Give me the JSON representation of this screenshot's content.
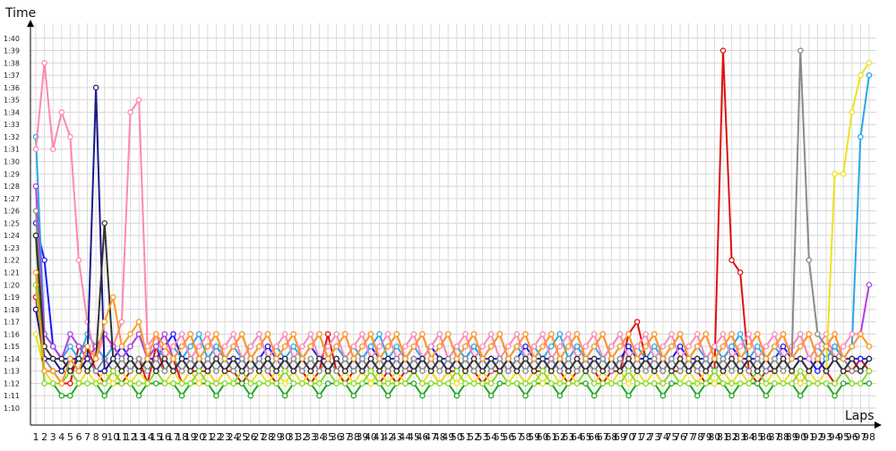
{
  "chart_data": {
    "type": "line",
    "title": "",
    "xlabel": "Laps",
    "ylabel": "Time",
    "ylim": [
      70,
      101
    ],
    "xlim": [
      1,
      98
    ],
    "grid": true,
    "y_ticks": [
      "1:10",
      "1:11",
      "1:12",
      "1:13",
      "1:14",
      "1:15",
      "1:16",
      "1:17",
      "1:18",
      "1:19",
      "1:20",
      "1:21",
      "1:22",
      "1:23",
      "1:24",
      "1:25",
      "1:26",
      "1:27",
      "1:28",
      "1:29",
      "1:30",
      "1:31",
      "1:32",
      "1:33",
      "1:34",
      "1:35",
      "1:36",
      "1:37",
      "1:38",
      "1:39",
      "1:40"
    ],
    "series_colors": [
      "#e01010",
      "#1a1aff",
      "#22a822",
      "#2aa8e8",
      "#ff88b0",
      "#b040e0",
      "#f0e020",
      "#8a8a8a",
      "#8ada30",
      "#1a1a8c",
      "#333333",
      "#ff9a20",
      "#30c0c0",
      "#a0c040",
      "#d01870",
      "#0090ff",
      "#70e070",
      "#e8a0ff",
      "#c0a000",
      "#606060"
    ],
    "series": [
      {
        "values": [
          79,
          73,
          73,
          72,
          72,
          75,
          75,
          73,
          72,
          73,
          72,
          73,
          74,
          72,
          75,
          73,
          74,
          72,
          73,
          73,
          73,
          72,
          73,
          73,
          72,
          73,
          74,
          73,
          72,
          73,
          74,
          73,
          72,
          73,
          76,
          73,
          72,
          73,
          74,
          73,
          72,
          73,
          72,
          73,
          73,
          74,
          73,
          72,
          73,
          73,
          74,
          73,
          72,
          73,
          73,
          74,
          73,
          72,
          73,
          73,
          74,
          73,
          72,
          73,
          74,
          73,
          72,
          73,
          73,
          76,
          77,
          74,
          73,
          72,
          73,
          73,
          74,
          73,
          72,
          73,
          99,
          82,
          81,
          73,
          72,
          73,
          73,
          74,
          73,
          72,
          73,
          74,
          73,
          72,
          73,
          73,
          74,
          73
        ]
      },
      {
        "values": [
          85,
          82,
          75,
          74,
          74,
          74,
          74,
          73,
          73,
          74,
          75,
          74,
          73,
          74,
          74,
          75,
          76,
          74,
          74,
          73,
          74,
          75,
          74,
          74,
          74,
          73,
          74,
          75,
          74,
          74,
          73,
          74,
          75,
          74,
          74,
          75,
          74,
          73,
          74,
          75,
          74,
          74,
          74,
          73,
          74,
          74,
          75,
          74,
          74,
          73,
          74,
          75,
          74,
          74,
          74,
          73,
          74,
          75,
          74,
          74,
          74,
          73,
          74,
          75,
          74,
          74,
          74,
          73,
          74,
          75,
          74,
          74,
          74,
          73,
          74,
          75,
          74,
          74,
          74,
          73,
          74,
          75,
          74,
          74,
          74,
          73,
          74,
          75,
          74,
          74,
          74,
          73,
          74,
          75,
          74,
          74,
          74,
          74
        ]
      },
      {
        "values": [
          84,
          72,
          72,
          71,
          71,
          72,
          72,
          72,
          71,
          72,
          72,
          72,
          71,
          72,
          72,
          72,
          72,
          71,
          72,
          72,
          72,
          71,
          72,
          72,
          72,
          71,
          72,
          72,
          72,
          71,
          72,
          72,
          72,
          71,
          72,
          72,
          72,
          71,
          72,
          72,
          72,
          71,
          72,
          72,
          72,
          71,
          72,
          72,
          72,
          71,
          72,
          72,
          72,
          71,
          72,
          72,
          72,
          71,
          72,
          72,
          72,
          71,
          72,
          72,
          72,
          71,
          72,
          72,
          72,
          71,
          72,
          72,
          72,
          71,
          72,
          72,
          72,
          71,
          72,
          72,
          72,
          71,
          72,
          72,
          72,
          71,
          72,
          72,
          72,
          71,
          72,
          72,
          72,
          71,
          72,
          72,
          72,
          72
        ]
      },
      {
        "values": [
          92,
          76,
          75,
          74,
          75,
          74,
          76,
          75,
          74,
          75,
          74,
          75,
          76,
          74,
          75,
          74,
          75,
          74,
          75,
          76,
          74,
          75,
          74,
          75,
          74,
          75,
          76,
          74,
          75,
          74,
          75,
          74,
          75,
          76,
          74,
          75,
          74,
          75,
          74,
          75,
          76,
          74,
          75,
          74,
          75,
          74,
          75,
          76,
          74,
          75,
          74,
          75,
          74,
          75,
          76,
          74,
          75,
          74,
          75,
          74,
          75,
          76,
          74,
          75,
          74,
          75,
          74,
          75,
          76,
          74,
          75,
          74,
          75,
          74,
          75,
          76,
          74,
          75,
          74,
          75,
          74,
          75,
          76,
          74,
          75,
          74,
          75,
          74,
          75,
          76,
          74,
          75,
          74,
          75,
          74,
          75,
          92,
          97
        ]
      },
      {
        "values": [
          91,
          98,
          91,
          94,
          92,
          82,
          77,
          74,
          76,
          75,
          77,
          94,
          95,
          75,
          76,
          74,
          75,
          76,
          74,
          75,
          76,
          74,
          75,
          76,
          74,
          75,
          76,
          74,
          75,
          76,
          74,
          75,
          76,
          74,
          75,
          76,
          74,
          75,
          76,
          74,
          75,
          76,
          74,
          75,
          76,
          74,
          75,
          76,
          74,
          75,
          76,
          74,
          75,
          76,
          74,
          75,
          76,
          74,
          75,
          76,
          74,
          75,
          76,
          74,
          75,
          76,
          74,
          75,
          76,
          74,
          75,
          76,
          74,
          75,
          76,
          74,
          75,
          76,
          74,
          75,
          76,
          74,
          75,
          76,
          74,
          75,
          76,
          74,
          75,
          76,
          74,
          75,
          76,
          74,
          75,
          76,
          76,
          75
        ]
      },
      {
        "values": [
          88,
          76,
          75,
          74,
          76,
          75,
          74,
          75,
          76,
          75,
          74,
          75,
          76,
          74,
          75,
          76,
          74,
          75,
          76,
          74,
          75,
          76,
          74,
          75,
          76,
          74,
          75,
          76,
          74,
          75,
          76,
          74,
          75,
          76,
          74,
          75,
          76,
          74,
          75,
          76,
          74,
          75,
          76,
          74,
          75,
          76,
          74,
          75,
          76,
          74,
          75,
          76,
          74,
          75,
          76,
          74,
          75,
          76,
          74,
          75,
          76,
          74,
          75,
          76,
          74,
          75,
          76,
          74,
          75,
          76,
          74,
          75,
          76,
          74,
          75,
          76,
          74,
          75,
          76,
          74,
          75,
          76,
          74,
          75,
          76,
          74,
          75,
          76,
          74,
          75,
          76,
          74,
          75,
          76,
          74,
          75,
          76,
          80
        ]
      },
      {
        "values": [
          76,
          73,
          72,
          72,
          73,
          72,
          73,
          72,
          73,
          72,
          73,
          72,
          73,
          72,
          73,
          72,
          73,
          72,
          73,
          72,
          73,
          72,
          73,
          72,
          73,
          72,
          73,
          72,
          73,
          72,
          73,
          72,
          73,
          72,
          73,
          72,
          73,
          72,
          73,
          72,
          73,
          72,
          73,
          72,
          73,
          72,
          73,
          72,
          73,
          72,
          73,
          72,
          73,
          72,
          73,
          72,
          73,
          72,
          73,
          72,
          73,
          72,
          73,
          72,
          73,
          72,
          73,
          72,
          73,
          72,
          73,
          72,
          73,
          72,
          73,
          72,
          73,
          72,
          73,
          72,
          73,
          72,
          73,
          72,
          73,
          72,
          73,
          72,
          73,
          72,
          73,
          72,
          73,
          89,
          89,
          94,
          97,
          98
        ]
      },
      {
        "values": [
          86,
          74,
          73,
          73,
          74,
          73,
          74,
          73,
          74,
          73,
          74,
          73,
          74,
          73,
          74,
          73,
          74,
          73,
          74,
          73,
          74,
          73,
          74,
          73,
          74,
          73,
          74,
          73,
          74,
          73,
          74,
          73,
          74,
          73,
          74,
          73,
          74,
          73,
          74,
          73,
          74,
          73,
          74,
          73,
          74,
          73,
          74,
          73,
          74,
          73,
          74,
          73,
          74,
          73,
          74,
          73,
          74,
          73,
          74,
          73,
          74,
          73,
          74,
          73,
          74,
          73,
          74,
          73,
          74,
          73,
          74,
          73,
          74,
          73,
          74,
          73,
          74,
          73,
          74,
          73,
          74,
          73,
          74,
          73,
          74,
          73,
          74,
          73,
          74,
          99,
          82,
          76,
          75,
          74,
          74,
          73,
          73,
          74
        ]
      },
      {
        "values": [
          80,
          72,
          72,
          72,
          73,
          72,
          72,
          72,
          72,
          73,
          72,
          72,
          72,
          72,
          73,
          72,
          72,
          72,
          72,
          73,
          72,
          72,
          72,
          72,
          73,
          72,
          72,
          72,
          72,
          73,
          72,
          72,
          72,
          72,
          73,
          72,
          72,
          72,
          72,
          73,
          72,
          72,
          72,
          72,
          73,
          72,
          72,
          72,
          72,
          73,
          72,
          72,
          72,
          72,
          73,
          72,
          72,
          72,
          72,
          73,
          72,
          72,
          72,
          72,
          73,
          72,
          72,
          72,
          72,
          73,
          72,
          72,
          72,
          72,
          73,
          72,
          72,
          72,
          72,
          73,
          72,
          72,
          72,
          72,
          73,
          72,
          72,
          72,
          72,
          73,
          72,
          72,
          72,
          72,
          73,
          72,
          72,
          73
        ]
      },
      {
        "values": [
          78,
          74,
          74,
          73,
          74,
          73,
          74,
          96,
          73,
          74,
          73,
          74,
          73,
          74,
          73,
          74,
          73,
          74,
          73,
          74,
          73,
          74,
          73,
          74,
          73,
          74,
          73,
          74,
          73,
          74,
          73,
          74,
          73,
          74,
          73,
          74,
          73,
          74,
          73,
          74,
          73,
          74,
          73,
          74,
          73,
          74,
          73,
          74,
          73,
          74,
          73,
          74,
          73,
          74,
          73,
          74,
          73,
          74,
          73,
          74,
          73,
          74,
          73,
          74,
          73,
          74,
          73,
          74,
          73,
          74,
          73,
          74,
          73,
          74,
          73,
          74,
          73,
          74,
          73,
          74,
          73,
          74,
          73,
          74,
          73,
          74,
          73,
          74,
          73,
          74,
          73,
          74,
          73,
          74,
          73,
          74,
          73,
          74
        ]
      },
      {
        "values": [
          84,
          75,
          74,
          74,
          73,
          74,
          73,
          74,
          85,
          74,
          73,
          74,
          73,
          74,
          73,
          74,
          73,
          74,
          73,
          74,
          73,
          74,
          73,
          74,
          73,
          74,
          73,
          74,
          73,
          74,
          73,
          74,
          73,
          74,
          73,
          74,
          73,
          74,
          73,
          74,
          73,
          74,
          73,
          74,
          73,
          74,
          73,
          74,
          73,
          74,
          73,
          74,
          73,
          74,
          73,
          74,
          73,
          74,
          73,
          74,
          73,
          74,
          73,
          74,
          73,
          74,
          73,
          74,
          73,
          74,
          73,
          74,
          73,
          74,
          73,
          74,
          73,
          74,
          73,
          74,
          73,
          74,
          73,
          74,
          73,
          74,
          73,
          74,
          73,
          74,
          73,
          74,
          73,
          74,
          73,
          74,
          73,
          74
        ]
      },
      {
        "values": [
          81,
          73,
          73,
          72,
          74,
          73,
          75,
          74,
          77,
          79,
          75,
          76,
          77,
          74,
          76,
          75,
          74,
          75,
          76,
          74,
          75,
          76,
          74,
          75,
          76,
          74,
          75,
          76,
          74,
          75,
          76,
          74,
          75,
          76,
          74,
          75,
          76,
          74,
          75,
          76,
          74,
          75,
          76,
          74,
          75,
          76,
          74,
          75,
          76,
          74,
          75,
          76,
          74,
          75,
          76,
          74,
          75,
          76,
          74,
          75,
          76,
          74,
          75,
          76,
          74,
          75,
          76,
          74,
          75,
          76,
          74,
          75,
          76,
          74,
          75,
          76,
          74,
          75,
          76,
          74,
          75,
          76,
          74,
          75,
          76,
          74,
          75,
          76,
          74,
          75,
          76,
          74,
          75,
          76,
          74,
          75,
          76,
          75
        ]
      }
    ]
  }
}
